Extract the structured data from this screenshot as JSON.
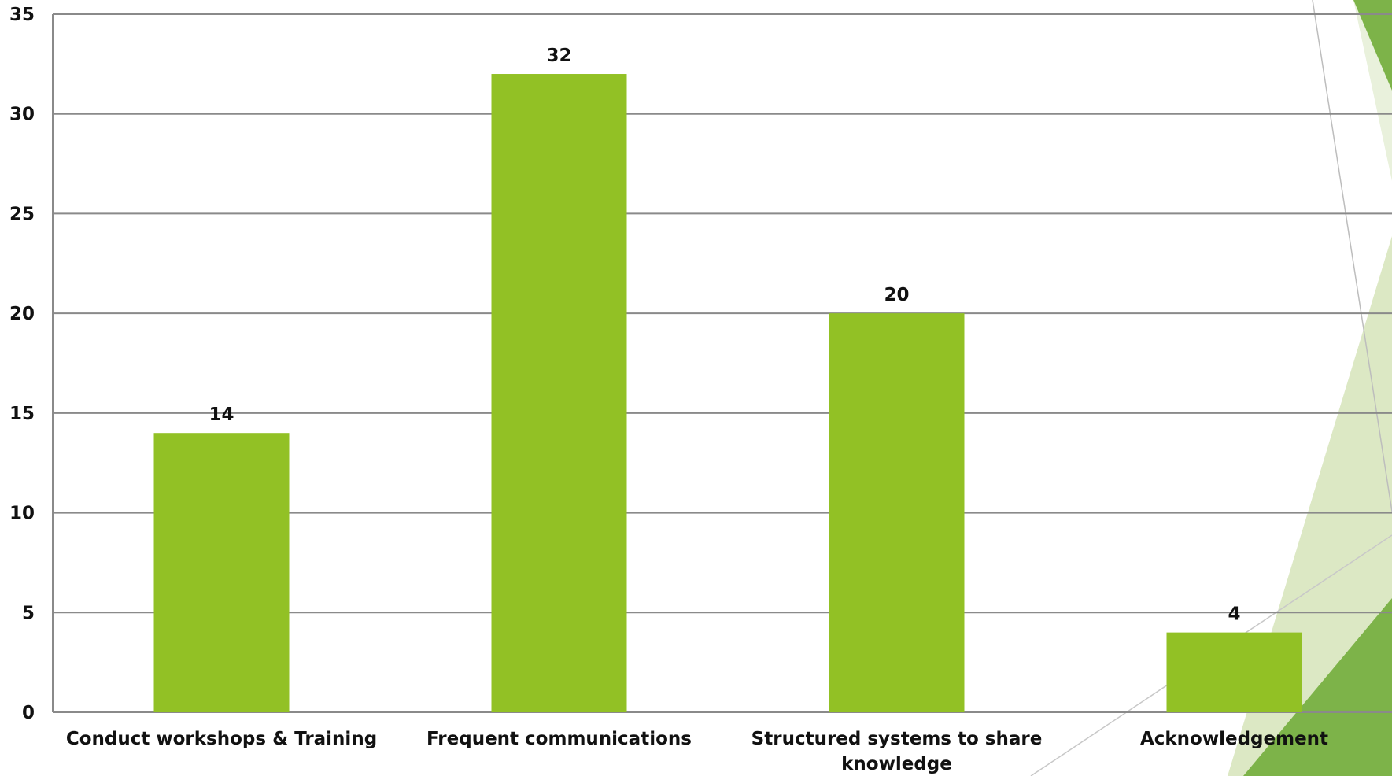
{
  "chart_data": {
    "type": "bar",
    "categories": [
      "Conduct workshops & Training",
      "Frequent communications",
      "Structured systems to share knowledge",
      "Acknowledgement"
    ],
    "values": [
      14,
      32,
      20,
      4
    ],
    "title": "",
    "xlabel": "",
    "ylabel": "",
    "ylim": [
      0,
      35
    ],
    "yticks": [
      0,
      5,
      10,
      15,
      20,
      25,
      30,
      35
    ],
    "grid": true,
    "legend": "none",
    "bar_color": "#92c125",
    "gridline_color": "#8a8a8a"
  },
  "theme": {
    "accent_dark": "#6aa537",
    "accent_mid": "#7db349",
    "accent_light": "#dce8c4",
    "accent_pale": "#e9f1dc"
  }
}
